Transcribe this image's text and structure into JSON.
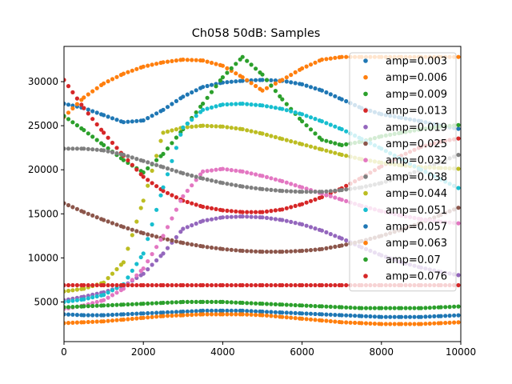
{
  "chart_data": {
    "type": "scatter",
    "title": "Ch058 50dB: Samples",
    "xlabel": "",
    "ylabel": "",
    "xlim": [
      0,
      10000
    ],
    "ylim": [
      500,
      34000
    ],
    "grid": false,
    "legend_position": "top-right",
    "xticks": [
      0,
      2000,
      4000,
      6000,
      8000,
      10000
    ],
    "yticks": [
      5000,
      10000,
      15000,
      20000,
      25000,
      30000
    ],
    "series": [
      {
        "name": "amp=0.003",
        "color": "#1f77b4",
        "x": [
          0,
          500,
          1000,
          1500,
          2000,
          2500,
          3000,
          3500,
          4000,
          4500,
          5000,
          5500,
          6000,
          6500,
          7000,
          7500,
          8000,
          8500,
          9000,
          9500,
          10000
        ],
        "y": [
          27500,
          27000,
          26200,
          25400,
          25600,
          26800,
          28300,
          29400,
          29900,
          30100,
          30200,
          30100,
          29700,
          29000,
          28000,
          27000,
          26300,
          25900,
          25500,
          25000,
          24600
        ]
      },
      {
        "name": "amp=0.006",
        "color": "#ff7f0e",
        "x": [
          0,
          500,
          1000,
          1500,
          2000,
          2500,
          3000,
          3500,
          4000,
          4500,
          5000,
          5500,
          6000,
          6500,
          7000,
          7500,
          8000,
          8500,
          9000,
          9500,
          10000
        ],
        "y": [
          26000,
          28200,
          29800,
          30900,
          31700,
          32200,
          32500,
          32400,
          31800,
          30500,
          29000,
          30200,
          31500,
          32500,
          32800,
          32800,
          32800,
          32800,
          32800,
          32800,
          32800
        ]
      },
      {
        "name": "amp=0.009",
        "color": "#2ca02c",
        "x": [
          0,
          500,
          1000,
          1500,
          2000,
          2500,
          3000,
          3500,
          4000,
          4500,
          5000,
          5500,
          6000,
          6500,
          7000,
          7500,
          8000,
          8500,
          9000,
          9500,
          10000
        ],
        "y": [
          26100,
          24500,
          22800,
          21100,
          19700,
          21800,
          24600,
          27500,
          30500,
          32800,
          30800,
          28000,
          25500,
          23400,
          22800,
          23200,
          23800,
          24200,
          24600,
          24900,
          25100
        ]
      },
      {
        "name": "amp=0.013",
        "color": "#d62728",
        "x": [
          0,
          500,
          1000,
          1500,
          2000,
          2500,
          3000,
          3500,
          4000,
          4500,
          5000,
          5500,
          6000,
          6500,
          7000,
          7500,
          8000,
          8500,
          9000,
          9500,
          10000
        ],
        "y": [
          30200,
          27000,
          24200,
          21600,
          19200,
          17600,
          16500,
          15800,
          15400,
          15200,
          15200,
          15500,
          16100,
          16900,
          17900,
          19100,
          20400,
          21600,
          22600,
          23200,
          23600
        ]
      },
      {
        "name": "amp=0.019",
        "color": "#9467bd",
        "x": [
          0,
          500,
          1000,
          1500,
          2000,
          2500,
          3000,
          3500,
          4000,
          4500,
          5000,
          5500,
          6000,
          6500,
          7000,
          7500,
          8000,
          8500,
          9000,
          9500,
          10000
        ],
        "y": [
          5200,
          5600,
          6100,
          6800,
          8200,
          10500,
          13300,
          14200,
          14600,
          14700,
          14600,
          14300,
          13800,
          13100,
          12200,
          11200,
          10300,
          9500,
          8900,
          8400,
          8000
        ]
      },
      {
        "name": "amp=0.025",
        "color": "#8c564b",
        "x": [
          0,
          500,
          1000,
          1500,
          2000,
          2500,
          3000,
          3500,
          4000,
          4500,
          5000,
          5500,
          6000,
          6500,
          7000,
          7500,
          8000,
          8500,
          9000,
          9500,
          10000
        ],
        "y": [
          16200,
          15200,
          14300,
          13500,
          12800,
          12200,
          11700,
          11300,
          11000,
          10800,
          10700,
          10700,
          10800,
          11000,
          11400,
          11900,
          12500,
          13200,
          14000,
          14900,
          15800
        ]
      },
      {
        "name": "amp=0.032",
        "color": "#e377c2",
        "x": [
          0,
          500,
          1000,
          1500,
          2000,
          2500,
          3000,
          3500,
          4000,
          4500,
          5000,
          5500,
          6000,
          6500,
          7000,
          7500,
          8000,
          8500,
          9000,
          9500,
          10000
        ],
        "y": [
          4200,
          4600,
          5200,
          6500,
          8800,
          12500,
          17000,
          19800,
          20100,
          19800,
          19300,
          18700,
          18000,
          17300,
          16600,
          15900,
          15300,
          14800,
          14400,
          14100,
          13900
        ]
      },
      {
        "name": "amp=0.038",
        "color": "#7f7f7f",
        "x": [
          0,
          500,
          1000,
          1500,
          2000,
          2500,
          3000,
          3500,
          4000,
          4500,
          5000,
          5500,
          6000,
          6500,
          7000,
          7500,
          8000,
          8500,
          9000,
          9500,
          10000
        ],
        "y": [
          22400,
          22400,
          22200,
          21700,
          21000,
          20300,
          19600,
          19000,
          18500,
          18100,
          17800,
          17600,
          17500,
          17500,
          17700,
          18000,
          18500,
          19200,
          20000,
          20900,
          21800
        ]
      },
      {
        "name": "amp=0.044",
        "color": "#bcbd22",
        "x": [
          0,
          500,
          1000,
          1500,
          2000,
          2500,
          3000,
          3500,
          4000,
          4500,
          5000,
          5500,
          6000,
          6500,
          7000,
          7500,
          8000,
          8500,
          9000,
          9500,
          10000
        ],
        "y": [
          6200,
          6500,
          7200,
          9500,
          16500,
          24200,
          24800,
          25000,
          24900,
          24600,
          24100,
          23500,
          22900,
          22300,
          21700,
          21200,
          20800,
          20500,
          20300,
          20200,
          20100
        ]
      },
      {
        "name": "amp=0.051",
        "color": "#17becf",
        "x": [
          0,
          500,
          1000,
          1500,
          2000,
          2500,
          3000,
          3500,
          4000,
          4500,
          5000,
          5500,
          6000,
          6500,
          7000,
          7500,
          8000,
          8500,
          9000,
          9500,
          10000
        ],
        "y": [
          5000,
          5300,
          5800,
          7000,
          10500,
          18000,
          24800,
          26800,
          27400,
          27500,
          27300,
          26900,
          26300,
          25500,
          24600,
          23500,
          22400,
          21200,
          20000,
          18900,
          17800
        ]
      },
      {
        "name": "amp=0.057",
        "color": "#1f77b4",
        "x": [
          0,
          500,
          1000,
          1500,
          2000,
          2500,
          3000,
          3500,
          4000,
          4500,
          5000,
          5500,
          6000,
          6500,
          7000,
          7500,
          8000,
          8500,
          9000,
          9500,
          10000
        ],
        "y": [
          3600,
          3500,
          3500,
          3600,
          3700,
          3800,
          3900,
          4000,
          4000,
          4000,
          3900,
          3800,
          3700,
          3600,
          3500,
          3400,
          3300,
          3300,
          3300,
          3400,
          3500
        ]
      },
      {
        "name": "amp=0.063",
        "color": "#ff7f0e",
        "x": [
          0,
          500,
          1000,
          1500,
          2000,
          2500,
          3000,
          3500,
          4000,
          4500,
          5000,
          5500,
          6000,
          6500,
          7000,
          7500,
          8000,
          8500,
          9000,
          9500,
          10000
        ],
        "y": [
          2600,
          2700,
          2800,
          3000,
          3200,
          3400,
          3500,
          3600,
          3600,
          3600,
          3500,
          3300,
          3100,
          2900,
          2700,
          2600,
          2500,
          2500,
          2500,
          2600,
          2700
        ]
      },
      {
        "name": "amp=0.07",
        "color": "#2ca02c",
        "x": [
          0,
          500,
          1000,
          1500,
          2000,
          2500,
          3000,
          3500,
          4000,
          4500,
          5000,
          5500,
          6000,
          6500,
          7000,
          7500,
          8000,
          8500,
          9000,
          9500,
          10000
        ],
        "y": [
          4400,
          4500,
          4600,
          4700,
          4800,
          4900,
          5000,
          5000,
          5000,
          4900,
          4800,
          4700,
          4600,
          4500,
          4400,
          4300,
          4300,
          4300,
          4300,
          4400,
          4500
        ]
      },
      {
        "name": "amp=0.076",
        "color": "#d62728",
        "x": [
          0,
          500,
          1000,
          1500,
          2000,
          2500,
          3000,
          3500,
          4000,
          4500,
          5000,
          5500,
          6000,
          6500,
          7000,
          7500,
          8000,
          8500,
          9000,
          9500,
          10000
        ],
        "y": [
          6900,
          6900,
          6900,
          6900,
          6900,
          6900,
          6900,
          6900,
          6900,
          6900,
          6900,
          6900,
          6900,
          6900,
          6900,
          6900,
          6900,
          6900,
          6900,
          6900,
          6900
        ]
      }
    ]
  }
}
